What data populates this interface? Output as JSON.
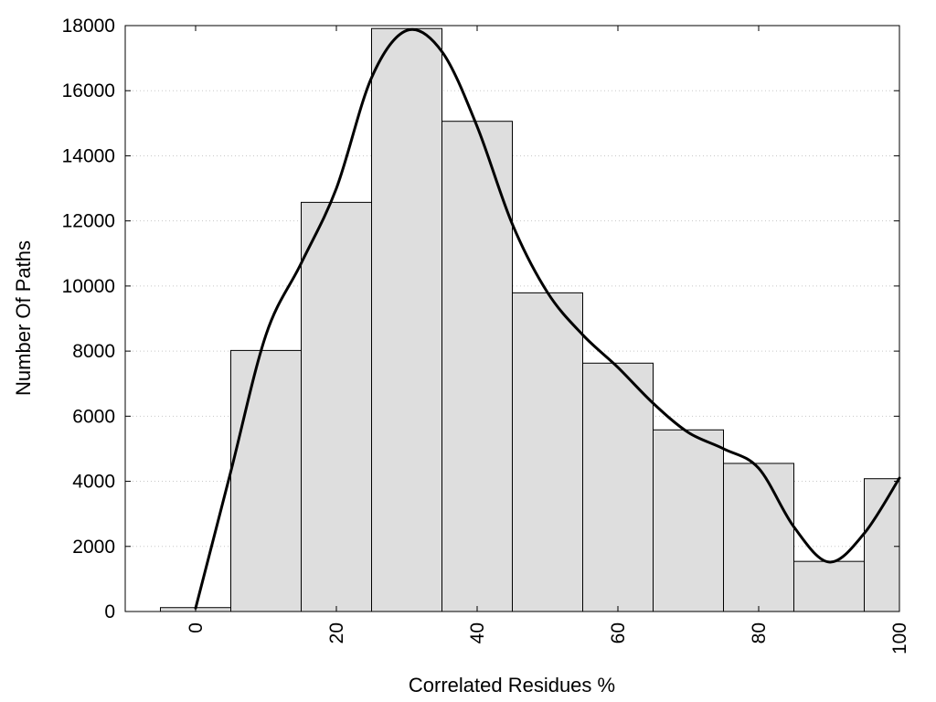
{
  "chart_data": {
    "type": "bar",
    "title": "",
    "xlabel": "Correlated Residues %",
    "ylabel": "Number Of Paths",
    "xlim": [
      -10,
      100
    ],
    "ylim": [
      0,
      18000
    ],
    "x_ticks": [
      "0",
      "20",
      "40",
      "60",
      "80",
      "100"
    ],
    "y_ticks": [
      "0",
      "2000",
      "4000",
      "6000",
      "8000",
      "10000",
      "12000",
      "14000",
      "16000",
      "18000"
    ],
    "grid": "horizontal-dotted",
    "legend": "none",
    "bin_width": 10,
    "bars": [
      {
        "x": 0,
        "value": 120
      },
      {
        "x": 10,
        "value": 8020
      },
      {
        "x": 20,
        "value": 12570
      },
      {
        "x": 30,
        "value": 17910
      },
      {
        "x": 40,
        "value": 15060
      },
      {
        "x": 50,
        "value": 9790
      },
      {
        "x": 60,
        "value": 7630
      },
      {
        "x": 70,
        "value": 5580
      },
      {
        "x": 80,
        "value": 4550
      },
      {
        "x": 90,
        "value": 1540
      },
      {
        "x": 100,
        "value": 4080
      }
    ],
    "series": [
      {
        "type": "line",
        "x": [
          0,
          5,
          10,
          15,
          20,
          25,
          30,
          35,
          40,
          45,
          50,
          55,
          60,
          65,
          70,
          75,
          80,
          85,
          90,
          95,
          100
        ],
        "values": [
          100,
          4300,
          8500,
          10700,
          13000,
          16400,
          17850,
          17200,
          14900,
          11900,
          9800,
          8500,
          7500,
          6400,
          5500,
          5000,
          4400,
          2600,
          1520,
          2400,
          4100
        ]
      }
    ],
    "colors": {
      "bar_fill": "#dedede",
      "bar_stroke": "#000000",
      "line": "#000000",
      "grid": "#c8c8c8"
    }
  }
}
